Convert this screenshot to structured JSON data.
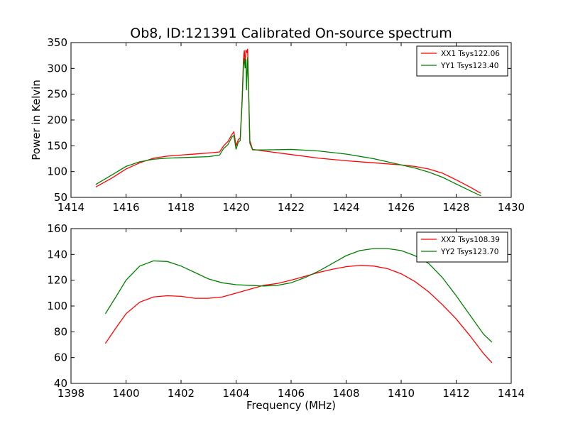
{
  "figure": {
    "title": "Ob8, ID:121391 Calibrated On-source spectrum"
  },
  "chart_data": [
    {
      "type": "line",
      "ylabel": "Power in Kelvin",
      "xlabel": "",
      "xlim": [
        1414,
        1430
      ],
      "ylim": [
        50,
        350
      ],
      "xticks": [
        1414,
        1416,
        1418,
        1420,
        1422,
        1424,
        1426,
        1428,
        1430
      ],
      "yticks": [
        50,
        100,
        150,
        200,
        250,
        300,
        350
      ],
      "legend": "top-right",
      "series": [
        {
          "name": "XX1 Tsys122.06",
          "color": "#ff0000",
          "points": [
            [
              1414.9,
              70
            ],
            [
              1415.5,
              88
            ],
            [
              1416.0,
              105
            ],
            [
              1416.5,
              117
            ],
            [
              1417.0,
              126
            ],
            [
              1417.5,
              130
            ],
            [
              1418.0,
              132
            ],
            [
              1418.5,
              134
            ],
            [
              1419.0,
              136
            ],
            [
              1419.4,
              138
            ],
            [
              1419.55,
              150
            ],
            [
              1419.7,
              158
            ],
            [
              1419.85,
              172
            ],
            [
              1419.92,
              177
            ],
            [
              1420.0,
              150
            ],
            [
              1420.08,
              162
            ],
            [
              1420.15,
              165
            ],
            [
              1420.22,
              240
            ],
            [
              1420.27,
              320
            ],
            [
              1420.3,
              335
            ],
            [
              1420.33,
              310
            ],
            [
              1420.36,
              336
            ],
            [
              1420.4,
              330
            ],
            [
              1420.42,
              338
            ],
            [
              1420.46,
              250
            ],
            [
              1420.5,
              160
            ],
            [
              1420.6,
              143
            ],
            [
              1421.0,
              140
            ],
            [
              1422.0,
              133
            ],
            [
              1423.0,
              126
            ],
            [
              1424.0,
              121
            ],
            [
              1425.0,
              117
            ],
            [
              1426.0,
              113
            ],
            [
              1426.5,
              110
            ],
            [
              1427.0,
              105
            ],
            [
              1427.5,
              97
            ],
            [
              1428.0,
              84
            ],
            [
              1428.5,
              70
            ],
            [
              1428.9,
              58
            ]
          ]
        },
        {
          "name": "YY1 Tsys123.40",
          "color": "#008000",
          "points": [
            [
              1414.9,
              75
            ],
            [
              1415.5,
              94
            ],
            [
              1416.0,
              110
            ],
            [
              1416.5,
              119
            ],
            [
              1417.0,
              124
            ],
            [
              1417.5,
              126
            ],
            [
              1418.0,
              127
            ],
            [
              1418.5,
              128
            ],
            [
              1419.0,
              129
            ],
            [
              1419.4,
              132
            ],
            [
              1419.55,
              145
            ],
            [
              1419.7,
              152
            ],
            [
              1419.85,
              167
            ],
            [
              1419.92,
              170
            ],
            [
              1420.0,
              143
            ],
            [
              1420.08,
              157
            ],
            [
              1420.15,
              160
            ],
            [
              1420.22,
              235
            ],
            [
              1420.27,
              305
            ],
            [
              1420.3,
              320
            ],
            [
              1420.33,
              300
            ],
            [
              1420.36,
              318
            ],
            [
              1420.38,
              258
            ],
            [
              1420.42,
              322
            ],
            [
              1420.46,
              245
            ],
            [
              1420.5,
              155
            ],
            [
              1420.6,
              142
            ],
            [
              1421.0,
              142
            ],
            [
              1422.0,
              143
            ],
            [
              1423.0,
              140
            ],
            [
              1424.0,
              134
            ],
            [
              1425.0,
              125
            ],
            [
              1426.0,
              113
            ],
            [
              1426.5,
              107
            ],
            [
              1427.0,
              99
            ],
            [
              1427.5,
              89
            ],
            [
              1428.0,
              76
            ],
            [
              1428.5,
              63
            ],
            [
              1428.9,
              53
            ]
          ]
        }
      ]
    },
    {
      "type": "line",
      "ylabel": "",
      "xlabel": "Frequency (MHz)",
      "xlim": [
        1398,
        1414
      ],
      "ylim": [
        40,
        160
      ],
      "xticks": [
        1398,
        1400,
        1402,
        1404,
        1406,
        1408,
        1410,
        1412,
        1414
      ],
      "yticks": [
        40,
        60,
        80,
        100,
        120,
        140,
        160
      ],
      "legend": "top-right",
      "series": [
        {
          "name": "XX2 Tsys108.39",
          "color": "#ff0000",
          "points": [
            [
              1399.25,
              71
            ],
            [
              1399.6,
              82
            ],
            [
              1400.0,
              94
            ],
            [
              1400.5,
              103
            ],
            [
              1401.0,
              107
            ],
            [
              1401.5,
              108
            ],
            [
              1402.0,
              107.5
            ],
            [
              1402.5,
              106
            ],
            [
              1403.0,
              106
            ],
            [
              1403.5,
              107
            ],
            [
              1404.0,
              110
            ],
            [
              1404.5,
              113
            ],
            [
              1405.0,
              116
            ],
            [
              1405.5,
              117.5
            ],
            [
              1406.0,
              120
            ],
            [
              1406.5,
              123
            ],
            [
              1407.0,
              126
            ],
            [
              1407.5,
              128.5
            ],
            [
              1408.0,
              130.5
            ],
            [
              1408.5,
              131.5
            ],
            [
              1409.0,
              131
            ],
            [
              1409.5,
              129
            ],
            [
              1410.0,
              125
            ],
            [
              1410.5,
              119
            ],
            [
              1411.0,
              111
            ],
            [
              1411.5,
              101
            ],
            [
              1412.0,
              90
            ],
            [
              1412.5,
              77
            ],
            [
              1413.0,
              63
            ],
            [
              1413.3,
              56
            ]
          ]
        },
        {
          "name": "YY2 Tsys123.70",
          "color": "#008000",
          "points": [
            [
              1399.25,
              94
            ],
            [
              1399.6,
              106
            ],
            [
              1400.0,
              120
            ],
            [
              1400.5,
              131
            ],
            [
              1401.0,
              135
            ],
            [
              1401.5,
              134.5
            ],
            [
              1402.0,
              131
            ],
            [
              1402.5,
              126
            ],
            [
              1403.0,
              121
            ],
            [
              1403.5,
              118
            ],
            [
              1404.0,
              116.5
            ],
            [
              1404.5,
              116
            ],
            [
              1405.0,
              115.5
            ],
            [
              1405.5,
              116
            ],
            [
              1406.0,
              118
            ],
            [
              1406.5,
              122
            ],
            [
              1407.0,
              127
            ],
            [
              1407.5,
              133
            ],
            [
              1408.0,
              139
            ],
            [
              1408.5,
              143
            ],
            [
              1409.0,
              144.5
            ],
            [
              1409.5,
              144.5
            ],
            [
              1410.0,
              143
            ],
            [
              1410.5,
              139
            ],
            [
              1411.0,
              133
            ],
            [
              1411.5,
              122
            ],
            [
              1412.0,
              108
            ],
            [
              1412.5,
              93
            ],
            [
              1413.0,
              78
            ],
            [
              1413.3,
              72
            ]
          ]
        }
      ]
    }
  ]
}
